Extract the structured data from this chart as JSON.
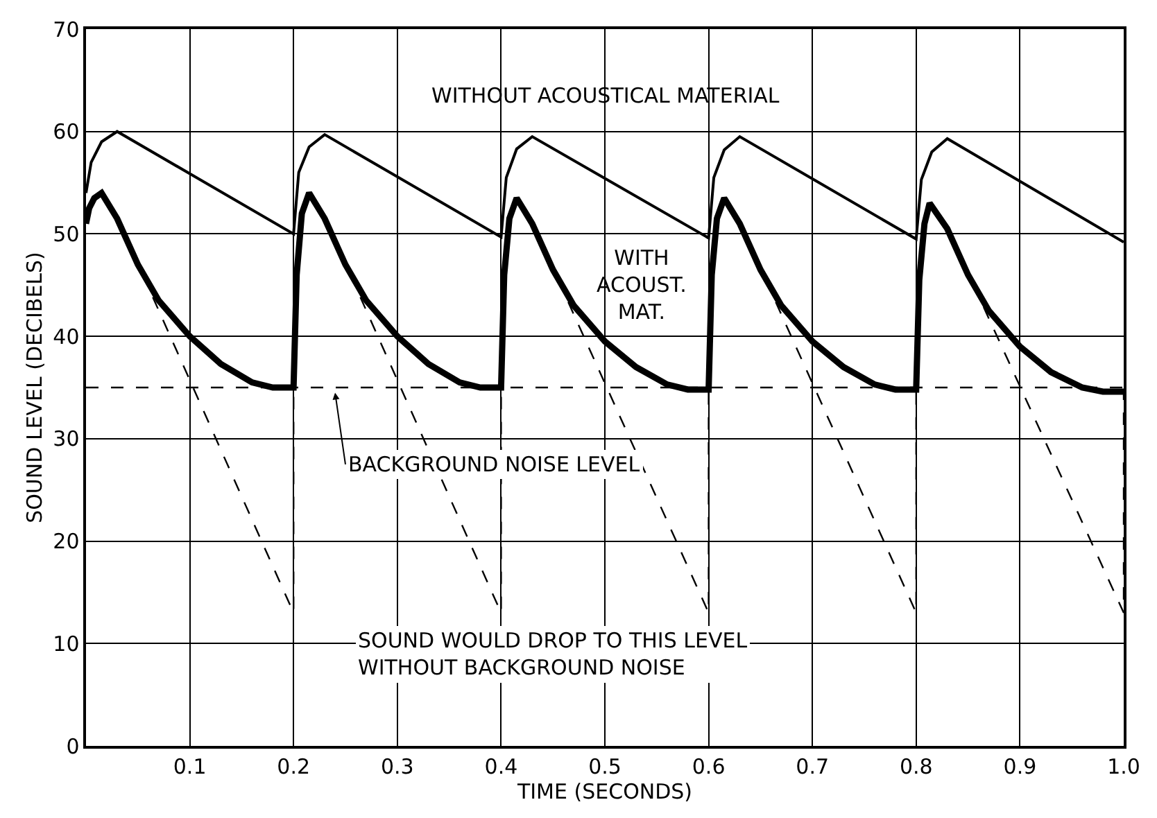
{
  "chart_data": {
    "type": "line",
    "xlabel": "TIME (SECONDS)",
    "ylabel": "SOUND LEVEL (DECIBELS)",
    "xlim": [
      0,
      1.0
    ],
    "ylim": [
      0,
      70
    ],
    "xticks": [
      0.1,
      0.2,
      0.3,
      0.4,
      0.5,
      0.6,
      0.7,
      0.8,
      0.9,
      {
        "value": 1.0,
        "label": "1.0"
      }
    ],
    "yticks": [
      0,
      10,
      20,
      30,
      40,
      50,
      60,
      70
    ],
    "grid": true,
    "marker": "none",
    "series": [
      {
        "name": "WITHOUT ACOUSTICAL MATERIAL",
        "color": "#000000",
        "line_style": "solid",
        "x": [
          0,
          0.005,
          0.015,
          0.03,
          0.2,
          0.205,
          0.215,
          0.23,
          0.4,
          0.405,
          0.415,
          0.43,
          0.6,
          0.605,
          0.615,
          0.63,
          0.8,
          0.805,
          0.815,
          0.83,
          1.0
        ],
        "values": [
          54,
          57,
          59,
          60,
          50,
          56,
          58.5,
          59.7,
          49.7,
          55.5,
          58.3,
          59.5,
          49.6,
          55.5,
          58.2,
          59.5,
          49.5,
          55.3,
          58,
          59.3,
          49.2
        ]
      },
      {
        "name": "WITH ACOUST. MAT.",
        "color": "#000000",
        "line_style": "solid",
        "x": [
          0,
          0.003,
          0.008,
          0.015,
          0.03,
          0.05,
          0.07,
          0.1,
          0.13,
          0.16,
          0.18,
          0.2,
          0.203,
          0.208,
          0.215,
          0.23,
          0.25,
          0.27,
          0.3,
          0.33,
          0.36,
          0.38,
          0.4,
          0.403,
          0.408,
          0.415,
          0.43,
          0.45,
          0.47,
          0.5,
          0.53,
          0.56,
          0.58,
          0.6,
          0.603,
          0.608,
          0.615,
          0.63,
          0.65,
          0.67,
          0.7,
          0.73,
          0.76,
          0.78,
          0.8,
          0.803,
          0.808,
          0.813,
          0.83,
          0.85,
          0.87,
          0.9,
          0.93,
          0.96,
          0.98,
          1.0
        ],
        "values": [
          51,
          52.5,
          53.5,
          54,
          51.5,
          47,
          43.5,
          40,
          37.3,
          35.5,
          35,
          35,
          46,
          52,
          54,
          51.5,
          47,
          43.5,
          40,
          37.3,
          35.5,
          35,
          35,
          46,
          51.5,
          53.5,
          51,
          46.5,
          43,
          39.5,
          37,
          35.3,
          34.8,
          34.8,
          46,
          51.5,
          53.5,
          51,
          46.5,
          43,
          39.5,
          37,
          35.3,
          34.8,
          34.8,
          45.5,
          51,
          53,
          50.5,
          46,
          42.5,
          39,
          36.5,
          35,
          34.6,
          34.6
        ]
      },
      {
        "color": "#000000",
        "line_style": "dashed",
        "x": [
          0.035,
          0.2,
          0.2,
          null,
          0.235,
          0.4,
          0.4,
          null,
          0.435,
          0.6,
          0.6,
          null,
          0.635,
          0.8,
          0.8,
          null,
          0.835,
          1.0,
          1.0
        ],
        "values": [
          50.5,
          13,
          35,
          null,
          50.5,
          13,
          35,
          null,
          50,
          13,
          35,
          null,
          50,
          13,
          35,
          null,
          49.5,
          13,
          34.6
        ]
      }
    ],
    "ref_lines": [
      {
        "axis": "y",
        "value": 35,
        "label": "BACKGROUND NOISE LEVEL",
        "color": "#000000",
        "line_style": "dashed"
      }
    ],
    "annotations": [
      "SOUND WOULD DROP TO THIS LEVEL\nWITHOUT BACKGROUND NOISE"
    ]
  }
}
